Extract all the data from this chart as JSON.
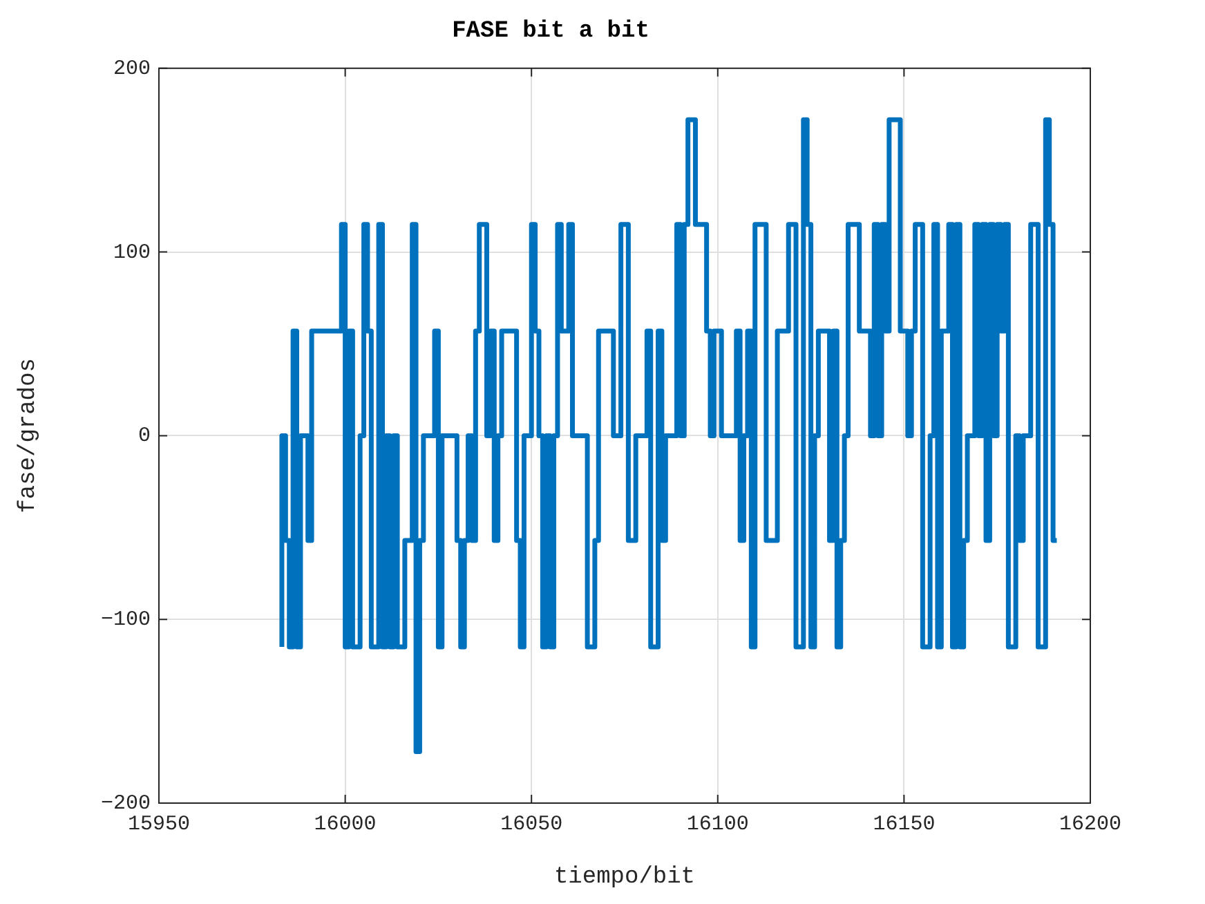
{
  "chart_data": {
    "type": "step",
    "title": "FASE bit a bit",
    "xlabel": "tiempo/bit",
    "ylabel": "fase/grados",
    "xlim": [
      15950,
      16200
    ],
    "xticks": [
      15950,
      16000,
      16050,
      16100,
      16150,
      16200
    ],
    "ylim": [
      -200,
      200
    ],
    "yticks": [
      -200,
      -100,
      0,
      100,
      200
    ],
    "grid": true,
    "legend": false,
    "line_style": "solid",
    "marker": "none",
    "x": [
      15983,
      15984,
      15985,
      15986,
      15987,
      15988,
      15989,
      15990,
      15991,
      15992,
      15993,
      15994,
      15995,
      15996,
      15997,
      15998,
      15999,
      16000,
      16001,
      16002,
      16003,
      16004,
      16005,
      16006,
      16007,
      16008,
      16009,
      16010,
      16011,
      16012,
      16013,
      16014,
      16015,
      16016,
      16017,
      16018,
      16019,
      16020,
      16021,
      16022,
      16023,
      16024,
      16025,
      16026,
      16027,
      16028,
      16029,
      16030,
      16031,
      16032,
      16033,
      16034,
      16035,
      16036,
      16037,
      16038,
      16039,
      16040,
      16041,
      16042,
      16043,
      16044,
      16045,
      16046,
      16047,
      16048,
      16049,
      16050,
      16051,
      16052,
      16053,
      16054,
      16055,
      16056,
      16057,
      16058,
      16059,
      16060,
      16061,
      16062,
      16063,
      16064,
      16065,
      16066,
      16067,
      16068,
      16069,
      16070,
      16071,
      16072,
      16073,
      16074,
      16075,
      16076,
      16077,
      16078,
      16079,
      16080,
      16081,
      16082,
      16083,
      16084,
      16085,
      16086,
      16087,
      16088,
      16089,
      16090,
      16091,
      16092,
      16093,
      16094,
      16095,
      16096,
      16097,
      16098,
      16099,
      16100,
      16101,
      16102,
      16103,
      16104,
      16105,
      16106,
      16107,
      16108,
      16109,
      16110,
      16111,
      16112,
      16113,
      16114,
      16115,
      16116,
      16117,
      16118,
      16119,
      16120,
      16121,
      16122,
      16123,
      16124,
      16125,
      16126,
      16127,
      16128,
      16129,
      16130,
      16131,
      16132,
      16133,
      16134,
      16135,
      16136,
      16137,
      16138,
      16139,
      16140,
      16141,
      16142,
      16143,
      16144,
      16145,
      16146,
      16147,
      16148,
      16149,
      16150,
      16151,
      16152,
      16153,
      16154,
      16155,
      16156,
      16157,
      16158,
      16159,
      16160,
      16161,
      16162,
      16163,
      16164,
      16165,
      16166,
      16167,
      16168,
      16169,
      16170,
      16171,
      16172,
      16173,
      16174,
      16175,
      16176,
      16177,
      16178,
      16179,
      16180,
      16181,
      16182,
      16183,
      16184,
      16185,
      16186,
      16187,
      16188,
      16189,
      16190,
      16191
    ],
    "series": [
      {
        "color": "#0072bd",
        "values": [
          -115,
          0,
          -57,
          -115,
          57,
          -115,
          0,
          0,
          -57,
          57,
          57,
          57,
          57,
          57,
          57,
          57,
          57,
          115,
          -115,
          57,
          -115,
          -115,
          0,
          115,
          57,
          -115,
          -115,
          115,
          -115,
          0,
          -115,
          0,
          -115,
          -115,
          -57,
          -57,
          115,
          -172,
          -57,
          0,
          0,
          0,
          57,
          -115,
          0,
          0,
          0,
          0,
          -57,
          -115,
          -57,
          0,
          -57,
          57,
          115,
          115,
          0,
          57,
          -57,
          0,
          57,
          57,
          57,
          57,
          -57,
          -115,
          0,
          0,
          115,
          57,
          0,
          -115,
          0,
          -115,
          0,
          115,
          57,
          57,
          115,
          0,
          0,
          0,
          0,
          -115,
          -115,
          -57,
          57,
          57,
          57,
          57,
          0,
          0,
          115,
          115,
          -57,
          -57,
          0,
          0,
          0,
          57,
          -115,
          -115,
          57,
          -57,
          0,
          0,
          0,
          115,
          0,
          115,
          172,
          172,
          115,
          115,
          115,
          57,
          0,
          57,
          57,
          0,
          0,
          0,
          0,
          57,
          -57,
          0,
          57,
          -115,
          115,
          115,
          115,
          -57,
          -57,
          -57,
          57,
          57,
          57,
          115,
          115,
          -115,
          -115,
          172,
          115,
          -115,
          0,
          57,
          57,
          57,
          -57,
          57,
          -115,
          -57,
          0,
          115,
          115,
          115,
          57,
          57,
          57,
          0,
          115,
          0,
          115,
          57,
          172,
          172,
          172,
          57,
          57,
          0,
          57,
          115,
          115,
          -115,
          -115,
          0,
          115,
          -115,
          57,
          57,
          115,
          -115,
          115,
          -115,
          -57,
          0,
          0,
          115,
          0,
          115,
          -57,
          115,
          0,
          115,
          57,
          115,
          -115,
          -115,
          0,
          -57,
          0,
          0,
          115,
          115,
          -115,
          -115,
          172,
          115,
          -57
        ]
      }
    ]
  }
}
